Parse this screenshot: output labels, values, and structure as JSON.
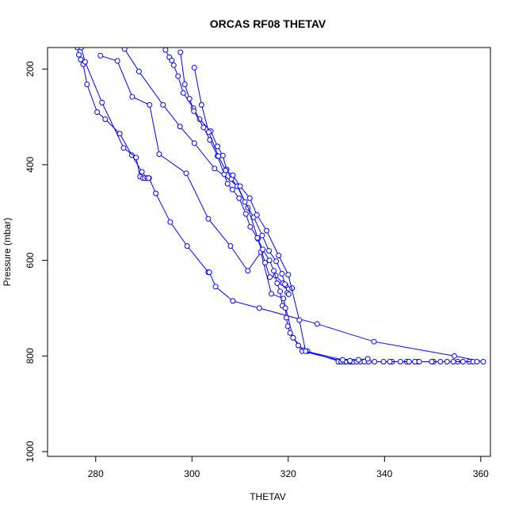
{
  "chart_data": {
    "type": "line",
    "title": "ORCAS RF08 THETAV",
    "xlabel": "THETAV",
    "ylabel": "Pressure (mbar)",
    "xlim": [
      270,
      362
    ],
    "ylim": [
      1010,
      155
    ],
    "y_reversed": true,
    "x_ticks": [
      280,
      300,
      320,
      340,
      360
    ],
    "x_tick_labels": [
      "280",
      "300",
      "320",
      "340",
      "360"
    ],
    "y_ticks": [
      200,
      400,
      600,
      800,
      1000
    ],
    "y_tick_labels": [
      "200",
      "400",
      "600",
      "800",
      "1000"
    ],
    "grid": false,
    "legend": "none",
    "series_color": "#0000ff",
    "marker": "open-circle",
    "series": [
      {
        "x": [
          276.2,
          276.5,
          276.9,
          277.4,
          278.2,
          280.3,
          282.0,
          285.0,
          287.5,
          289.6,
          290.6,
          291.1,
          292.5,
          295.5,
          299.0,
          303.4,
          303.6,
          304.9,
          308.5,
          314.0,
          326.0,
          337.8,
          354.5,
          360.5
        ],
        "y": [
          155,
          170,
          180,
          190,
          232,
          290,
          305,
          335,
          380,
          415,
          428,
          428,
          460,
          520,
          570,
          625,
          625,
          655,
          685,
          700,
          733,
          770,
          800,
          812
        ]
      },
      {
        "x": [
          277.0,
          277.8,
          281.3,
          285.8,
          288.4,
          289.2,
          289.8,
          290.2,
          290.7,
          291.0
        ],
        "y": [
          155,
          185,
          270,
          365,
          385,
          425,
          428,
          428,
          428,
          428
        ]
      },
      {
        "x": [
          281.0,
          284.5,
          287.6,
          291.2,
          293.2,
          298.8,
          303.4,
          308.0,
          311.6,
          314.3,
          316.5,
          319.0,
          321.0,
          323.2,
          324.0,
          330.8,
          346.9
        ],
        "y": [
          172,
          183,
          258,
          275,
          378,
          418,
          513,
          570,
          622,
          583,
          670,
          680,
          762,
          788,
          790,
          812,
          812
        ]
      },
      {
        "x": [
          286.0,
          289.0,
          294.0,
          297.5,
          300.5,
          304.7,
          309.5,
          311.6,
          313.7,
          315.2,
          316.2,
          317.4,
          318.9,
          319.5,
          320.8
        ],
        "y": [
          158,
          205,
          275,
          320,
          355,
          408,
          445,
          490,
          555,
          605,
          635,
          632,
          648,
          653,
          658
        ]
      },
      {
        "x": [
          294.5,
          295.3,
          295.8,
          296.2,
          297.1,
          298.2,
          300.3,
          301.6,
          303.9,
          305.3,
          306.4,
          307.2,
          308.2,
          309.4,
          311.0,
          312.8,
          314.6,
          316.0,
          317.5,
          318.7,
          319.3,
          319.8,
          320.1
        ],
        "y": [
          160,
          175,
          182,
          192,
          215,
          250,
          282,
          305,
          330,
          362,
          381,
          410,
          430,
          445,
          478,
          510,
          548,
          580,
          602,
          628,
          650,
          668,
          671
        ]
      },
      {
        "x": [
          297.6,
          298.5,
          299.5,
          300.4,
          302.4,
          303.7,
          305.3,
          306.7,
          307.4,
          308.4,
          309.8,
          311.2,
          312.1,
          313.6,
          314.7,
          316.1,
          317.0,
          317.7,
          318.3,
          318.8,
          319.4,
          319.6,
          319.9,
          320.4,
          321.0,
          322.1,
          322.9,
          331.8,
          341.6,
          357.6
        ],
        "y": [
          165,
          232,
          262,
          288,
          322,
          348,
          382,
          420,
          440,
          452,
          470,
          503,
          530,
          553,
          577,
          600,
          622,
          648,
          665,
          695,
          700,
          720,
          738,
          752,
          762,
          778,
          790,
          812,
          812,
          812
        ]
      },
      {
        "x": [
          300.5,
          302.0,
          303.5,
          305.5,
          307.0,
          308.5,
          310.0,
          312.0,
          313.5,
          315.5,
          318.0,
          320.0,
          322.3,
          323.6,
          333.0,
          344.6,
          350.2,
          355.2
        ],
        "y": [
          197,
          275,
          332,
          382,
          412,
          422,
          445,
          470,
          505,
          538,
          590,
          630,
          725,
          790,
          812,
          812,
          812,
          812
        ]
      },
      {
        "x": [
          330.4,
          331.0,
          331.6,
          332.1,
          332.8,
          333.5,
          334.2,
          335.0,
          335.8,
          336.7,
          337.9,
          339.8,
          341.1,
          343.3,
          345.1,
          346.3,
          347.2,
          349.8,
          351.6,
          353.0,
          354.3,
          356.3,
          358.4,
          359.2
        ],
        "y": [
          812,
          812,
          812,
          812,
          812,
          812,
          812,
          812,
          812,
          812,
          812,
          812,
          812,
          812,
          812,
          812,
          812,
          812,
          812,
          812,
          812,
          812,
          812,
          812
        ]
      },
      {
        "x": [
          331.3,
          332.8,
          334.6,
          336.5
        ],
        "y": [
          808,
          810,
          808,
          806
        ]
      }
    ]
  }
}
